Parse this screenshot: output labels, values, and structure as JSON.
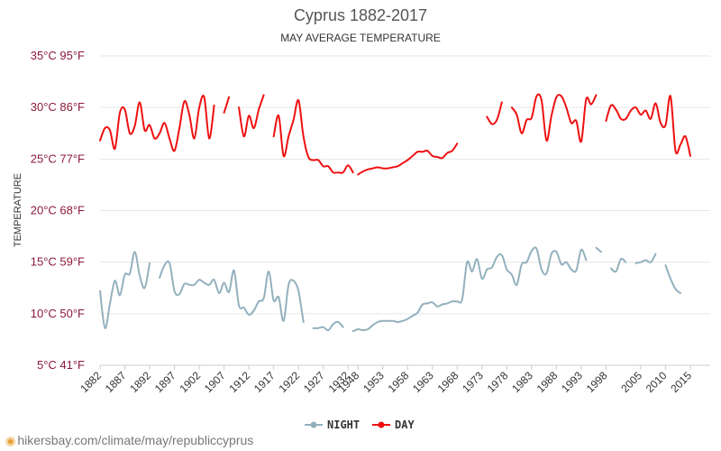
{
  "source_text": "hikersbay.com/climate/may/republiccyprus",
  "colors": {
    "day": "#ee1111",
    "night": "#93b1bd",
    "grid": "#e6e6e6",
    "tick": "#8b1a3a"
  },
  "chart_data": {
    "type": "line",
    "title": "Cyprus 1882-2017",
    "subtitle": "MAY AVERAGE TEMPERATURE",
    "ylabel": "TEMPERATURE",
    "ylim": [
      5,
      35
    ],
    "y_ticks": [
      {
        "value": 35,
        "label": "35°C 95°F"
      },
      {
        "value": 30,
        "label": "30°C 86°F"
      },
      {
        "value": 25,
        "label": "25°C 77°F"
      },
      {
        "value": 20,
        "label": "20°C 68°F"
      },
      {
        "value": 15,
        "label": "15°C 59°F"
      },
      {
        "value": 10,
        "label": "10°C 50°F"
      },
      {
        "value": 5,
        "label": "5°C 41°F"
      }
    ],
    "x_tick_labels": [
      "1882",
      "1887",
      "1892",
      "1897",
      "1902",
      "1907",
      "1912",
      "1917",
      "1922",
      "1927",
      "1932",
      "1948",
      "1953",
      "1958",
      "1963",
      "1968",
      "1973",
      "1978",
      "1983",
      "1988",
      "1993",
      "1998",
      "2005",
      "2010",
      "2015"
    ],
    "legend": [
      "NIGHT",
      "DAY"
    ],
    "series": [
      {
        "name": "DAY",
        "segments": [
          [
            [
              "1882",
              26.8
            ],
            [
              "1883",
              28
            ],
            [
              "1884",
              27.8
            ],
            [
              "1885",
              26
            ],
            [
              "1886",
              29.5
            ],
            [
              "1887",
              29.8
            ],
            [
              "1888",
              27.5
            ],
            [
              "1889",
              28.2
            ],
            [
              "1890",
              30.5
            ],
            [
              "1891",
              27.8
            ],
            [
              "1892",
              28.3
            ],
            [
              "1893",
              27
            ],
            [
              "1894",
              27.5
            ],
            [
              "1895",
              28.5
            ],
            [
              "1896",
              27
            ],
            [
              "1897",
              25.8
            ],
            [
              "1898",
              28
            ],
            [
              "1899",
              30.6
            ],
            [
              "1900",
              29.3
            ],
            [
              "1901",
              27
            ],
            [
              "1902",
              30
            ],
            [
              "1903",
              31
            ],
            [
              "1904",
              27
            ],
            [
              "1905",
              30.2
            ]
          ],
          [
            [
              "1907",
              29.5
            ],
            [
              "1908",
              31
            ]
          ],
          [
            [
              "1910",
              30
            ],
            [
              "1911",
              27.2
            ],
            [
              "1912",
              29.2
            ],
            [
              "1913",
              28
            ],
            [
              "1914",
              29.8
            ],
            [
              "1915",
              31.2
            ]
          ],
          [
            [
              "1917",
              27.2
            ],
            [
              "1918",
              29.2
            ],
            [
              "1919",
              25.3
            ],
            [
              "1920",
              27.2
            ],
            [
              "1921",
              28.8
            ],
            [
              "1922",
              30.7
            ],
            [
              "1923",
              27.2
            ],
            [
              "1924",
              25.2
            ],
            [
              "1925",
              24.9
            ],
            [
              "1926",
              24.9
            ],
            [
              "1927",
              24.3
            ],
            [
              "1928",
              24.3
            ],
            [
              "1929",
              23.7
            ],
            [
              "1930",
              23.7
            ],
            [
              "1931",
              23.7
            ],
            [
              "1932",
              24.4
            ],
            [
              "1933",
              23.7
            ]
          ],
          [
            [
              "1948",
              23.5
            ],
            [
              "1949",
              23.8
            ],
            [
              "1950",
              24
            ],
            [
              "1951",
              24.1
            ],
            [
              "1952",
              24.2
            ],
            [
              "1953",
              24.1
            ],
            [
              "1954",
              24.1
            ],
            [
              "1955",
              24.2
            ],
            [
              "1956",
              24.3
            ],
            [
              "1957",
              24.6
            ],
            [
              "1958",
              24.9
            ],
            [
              "1959",
              25.3
            ],
            [
              "1960",
              25.7
            ],
            [
              "1961",
              25.7
            ],
            [
              "1962",
              25.8
            ],
            [
              "1963",
              25.3
            ],
            [
              "1964",
              25.2
            ],
            [
              "1965",
              25.1
            ],
            [
              "1966",
              25.6
            ],
            [
              "1967",
              25.8
            ],
            [
              "1968",
              26.5
            ]
          ],
          [
            [
              "1974",
              29.1
            ],
            [
              "1975",
              28.4
            ],
            [
              "1976",
              28.8
            ],
            [
              "1977",
              30.5
            ]
          ],
          [
            [
              "1979",
              30
            ],
            [
              "1980",
              29.3
            ],
            [
              "1981",
              27.5
            ],
            [
              "1982",
              28.8
            ],
            [
              "1983",
              29
            ],
            [
              "1984",
              31.1
            ],
            [
              "1985",
              30.7
            ],
            [
              "1986",
              26.8
            ],
            [
              "1987",
              29.2
            ],
            [
              "1988",
              31
            ],
            [
              "1989",
              31.1
            ],
            [
              "1990",
              30
            ],
            [
              "1991",
              28.5
            ],
            [
              "1992",
              28.7
            ],
            [
              "1993",
              26.7
            ],
            [
              "1994",
              30.8
            ],
            [
              "1995",
              30.3
            ],
            [
              "1996",
              31.2
            ]
          ],
          [
            [
              "1998",
              28.7
            ],
            [
              "1999",
              30.2
            ],
            [
              "2000",
              29.8
            ],
            [
              "2001",
              28.9
            ],
            [
              "2002",
              28.9
            ],
            [
              "2003",
              29.7
            ],
            [
              "2004",
              30
            ],
            [
              "2005",
              29.3
            ],
            [
              "2006",
              29.7
            ],
            [
              "2007",
              28.9
            ],
            [
              "2008",
              30.4
            ],
            [
              "2009",
              28.5
            ],
            [
              "2010",
              28.3
            ],
            [
              "2011",
              31.1
            ],
            [
              "2012",
              25.8
            ],
            [
              "2013",
              26.4
            ],
            [
              "2014",
              27.2
            ],
            [
              "2015",
              25.3
            ]
          ]
        ]
      },
      {
        "name": "NIGHT",
        "segments": [
          [
            [
              "1882",
              12.2
            ],
            [
              "1883",
              8.6
            ],
            [
              "1884",
              11
            ],
            [
              "1885",
              13.2
            ],
            [
              "1886",
              11.8
            ],
            [
              "1887",
              13.8
            ],
            [
              "1888",
              13.9
            ],
            [
              "1889",
              16
            ],
            [
              "1890",
              13.7
            ],
            [
              "1891",
              12.5
            ],
            [
              "1892",
              14.9
            ]
          ],
          [
            [
              "1894",
              13.5
            ],
            [
              "1895",
              14.7
            ],
            [
              "1896",
              14.9
            ],
            [
              "1897",
              12.2
            ],
            [
              "1898",
              11.9
            ],
            [
              "1899",
              12.9
            ],
            [
              "1900",
              12.8
            ],
            [
              "1901",
              12.8
            ],
            [
              "1902",
              13.3
            ],
            [
              "1903",
              13
            ],
            [
              "1904",
              12.8
            ],
            [
              "1905",
              13.3
            ],
            [
              "1906",
              12
            ],
            [
              "1907",
              13
            ],
            [
              "1908",
              12.1
            ],
            [
              "1909",
              14.2
            ],
            [
              "1910",
              10.8
            ],
            [
              "1911",
              10.6
            ],
            [
              "1912",
              9.9
            ],
            [
              "1913",
              10.3
            ],
            [
              "1914",
              11.2
            ],
            [
              "1915",
              11.5
            ],
            [
              "1916",
              14.1
            ],
            [
              "1917",
              11.3
            ],
            [
              "1918",
              11.6
            ],
            [
              "1919",
              9.3
            ],
            [
              "1920",
              12.8
            ],
            [
              "1921",
              13.2
            ],
            [
              "1922",
              12.2
            ],
            [
              "1923",
              9.2
            ]
          ],
          [
            [
              "1925",
              8.6
            ],
            [
              "1926",
              8.6
            ],
            [
              "1927",
              8.7
            ],
            [
              "1928",
              8.4
            ],
            [
              "1929",
              9
            ],
            [
              "1930",
              9.2
            ],
            [
              "1931",
              8.7
            ]
          ],
          [
            [
              "1933",
              8.3
            ],
            [
              "1948",
              8.5
            ],
            [
              "1949",
              8.4
            ],
            [
              "1950",
              8.5
            ],
            [
              "1951",
              8.9
            ],
            [
              "1952",
              9.2
            ],
            [
              "1953",
              9.3
            ],
            [
              "1954",
              9.3
            ],
            [
              "1955",
              9.3
            ],
            [
              "1956",
              9.2
            ],
            [
              "1957",
              9.3
            ],
            [
              "1958",
              9.5
            ],
            [
              "1959",
              9.8
            ],
            [
              "1960",
              10.1
            ],
            [
              "1961",
              10.9
            ],
            [
              "1962",
              11
            ],
            [
              "1963",
              11.1
            ],
            [
              "1964",
              10.7
            ],
            [
              "1965",
              10.9
            ],
            [
              "1966",
              11
            ],
            [
              "1967",
              11.2
            ],
            [
              "1968",
              11.2
            ],
            [
              "1969",
              11.4
            ],
            [
              "1970",
              15
            ],
            [
              "1971",
              14.1
            ],
            [
              "1972",
              15.3
            ],
            [
              "1973",
              13.4
            ],
            [
              "1974",
              14.3
            ],
            [
              "1975",
              14.5
            ],
            [
              "1976",
              15.5
            ],
            [
              "1977",
              15.7
            ],
            [
              "1978",
              14.3
            ],
            [
              "1979",
              13.8
            ],
            [
              "1980",
              12.8
            ],
            [
              "1981",
              14.8
            ],
            [
              "1982",
              15
            ],
            [
              "1983",
              16.1
            ],
            [
              "1984",
              16.3
            ],
            [
              "1985",
              14.3
            ],
            [
              "1986",
              13.9
            ],
            [
              "1987",
              15.8
            ],
            [
              "1988",
              16
            ],
            [
              "1989",
              14.8
            ],
            [
              "1990",
              15
            ],
            [
              "1991",
              14.3
            ],
            [
              "1992",
              14.2
            ],
            [
              "1993",
              16.2
            ],
            [
              "1994",
              15.2
            ]
          ],
          [
            [
              "1996",
              16.4
            ],
            [
              "1997",
              16
            ]
          ],
          [
            [
              "1999",
              14.4
            ],
            [
              "2000",
              14.1
            ],
            [
              "2001",
              15.3
            ],
            [
              "2002",
              15
            ]
          ],
          [
            [
              "2004",
              14.9
            ],
            [
              "2005",
              15
            ],
            [
              "2006",
              15.2
            ],
            [
              "2007",
              15
            ],
            [
              "2008",
              15.8
            ]
          ],
          [
            [
              "2010",
              14.7
            ],
            [
              "2011",
              13.4
            ],
            [
              "2012",
              12.4
            ],
            [
              "2013",
              12
            ]
          ]
        ]
      }
    ]
  }
}
